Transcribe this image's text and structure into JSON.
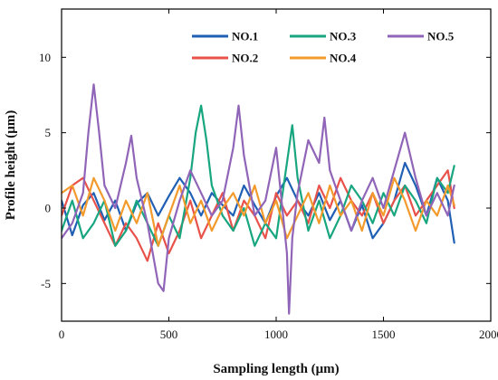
{
  "chart_data": {
    "type": "line",
    "xlabel": "Sampling length (μm)",
    "ylabel": "Profile height (μm)",
    "xlim": [
      0,
      2000
    ],
    "ylim": [
      -7.5,
      13.2
    ],
    "xticks": [
      0,
      500,
      1000,
      1500,
      2000
    ],
    "yticks": [
      -5,
      0,
      5,
      10
    ],
    "grid": false,
    "legend_position": "top-right",
    "series": [
      {
        "name": "NO.1",
        "color": "#1f5fb4",
        "x": [
          0,
          50,
          100,
          150,
          200,
          250,
          300,
          350,
          400,
          450,
          500,
          550,
          600,
          650,
          700,
          750,
          800,
          850,
          900,
          950,
          1000,
          1050,
          1100,
          1150,
          1200,
          1250,
          1300,
          1350,
          1400,
          1450,
          1500,
          1550,
          1600,
          1650,
          1700,
          1750,
          1800,
          1830
        ],
        "y": [
          0.5,
          -1.8,
          0.2,
          1.0,
          -0.8,
          0.5,
          -1.5,
          0.3,
          1.0,
          -0.5,
          0.8,
          2.0,
          1.0,
          -0.5,
          1.0,
          0.2,
          -0.5,
          1.5,
          0.2,
          -1.0,
          0.8,
          2.0,
          0.5,
          -0.5,
          1.0,
          -0.8,
          0.5,
          -1.5,
          0.2,
          -2.0,
          -1.0,
          0.5,
          3.0,
          1.5,
          -0.5,
          2.0,
          0.5,
          -2.3
        ]
      },
      {
        "name": "NO.2",
        "color": "#e8524a",
        "x": [
          0,
          50,
          100,
          150,
          200,
          250,
          300,
          350,
          400,
          450,
          500,
          550,
          600,
          650,
          700,
          750,
          800,
          850,
          900,
          950,
          1000,
          1050,
          1100,
          1150,
          1200,
          1250,
          1300,
          1350,
          1400,
          1450,
          1500,
          1550,
          1600,
          1650,
          1700,
          1750,
          1800,
          1830
        ],
        "y": [
          -0.5,
          1.5,
          2.0,
          0.5,
          -1.0,
          -2.5,
          -1.0,
          -2.0,
          -3.5,
          -1.0,
          -3.0,
          -1.5,
          0.5,
          -2.0,
          -0.5,
          1.0,
          -1.5,
          0.5,
          -0.5,
          -2.0,
          1.0,
          -0.5,
          0.5,
          -1.0,
          1.5,
          0.0,
          2.0,
          0.5,
          -0.5,
          1.0,
          -1.0,
          0.5,
          1.5,
          -0.5,
          0.5,
          1.5,
          2.5,
          0.0
        ]
      },
      {
        "name": "NO.3",
        "color": "#17a67f",
        "x": [
          0,
          50,
          100,
          150,
          200,
          250,
          300,
          350,
          400,
          450,
          500,
          550,
          600,
          625,
          650,
          675,
          700,
          750,
          800,
          850,
          900,
          950,
          1000,
          1050,
          1075,
          1100,
          1150,
          1200,
          1250,
          1300,
          1350,
          1400,
          1450,
          1500,
          1550,
          1600,
          1650,
          1700,
          1750,
          1800,
          1830
        ],
        "y": [
          -1.5,
          0.5,
          -2.0,
          -1.0,
          0.5,
          -2.5,
          -1.5,
          0.5,
          -1.0,
          -2.5,
          -0.5,
          -2.0,
          2.0,
          5.0,
          6.8,
          4.5,
          1.5,
          -0.5,
          -1.5,
          0.0,
          -2.5,
          -1.0,
          -2.0,
          3.0,
          5.5,
          2.0,
          -1.5,
          0.5,
          -2.0,
          -0.5,
          1.5,
          0.5,
          -1.0,
          1.0,
          -0.5,
          1.5,
          0.5,
          -1.0,
          2.0,
          1.0,
          2.8
        ]
      },
      {
        "name": "NO.4",
        "color": "#f39a2c",
        "x": [
          0,
          50,
          100,
          150,
          200,
          250,
          300,
          350,
          400,
          450,
          500,
          550,
          600,
          650,
          700,
          750,
          800,
          850,
          900,
          950,
          1000,
          1050,
          1100,
          1150,
          1200,
          1250,
          1300,
          1350,
          1400,
          1450,
          1500,
          1550,
          1600,
          1650,
          1700,
          1750,
          1800,
          1830
        ],
        "y": [
          1.0,
          1.5,
          -0.5,
          2.0,
          0.5,
          -1.5,
          0.5,
          -1.0,
          1.0,
          -2.5,
          -0.5,
          1.5,
          -1.0,
          0.5,
          -1.5,
          0.0,
          1.0,
          -0.5,
          1.5,
          -1.0,
          0.5,
          -2.0,
          -0.5,
          1.0,
          -1.0,
          1.5,
          -0.5,
          0.5,
          -1.5,
          1.0,
          -0.5,
          2.0,
          0.5,
          -1.5,
          0.5,
          -0.5,
          1.5,
          0.2
        ]
      },
      {
        "name": "NO.5",
        "color": "#9065b8",
        "x": [
          0,
          50,
          100,
          125,
          150,
          175,
          200,
          250,
          300,
          325,
          350,
          400,
          450,
          475,
          500,
          550,
          600,
          650,
          700,
          750,
          800,
          825,
          850,
          900,
          950,
          1000,
          1050,
          1060,
          1075,
          1100,
          1150,
          1200,
          1225,
          1250,
          1300,
          1350,
          1400,
          1450,
          1500,
          1550,
          1600,
          1650,
          1700,
          1750,
          1800,
          1830
        ],
        "y": [
          -2.0,
          -1.0,
          1.0,
          5.0,
          8.2,
          5.0,
          1.5,
          0.0,
          3.0,
          4.8,
          2.0,
          -1.0,
          -5.0,
          -5.5,
          -2.0,
          0.5,
          2.5,
          1.0,
          -0.5,
          0.5,
          4.0,
          6.8,
          3.5,
          -0.5,
          0.5,
          4.0,
          -3.0,
          -7.0,
          -2.0,
          1.0,
          4.5,
          3.0,
          6.0,
          2.5,
          0.5,
          -1.5,
          0.5,
          2.0,
          0.0,
          2.5,
          5.0,
          2.0,
          -0.5,
          1.0,
          -0.5,
          1.5
        ]
      }
    ]
  }
}
